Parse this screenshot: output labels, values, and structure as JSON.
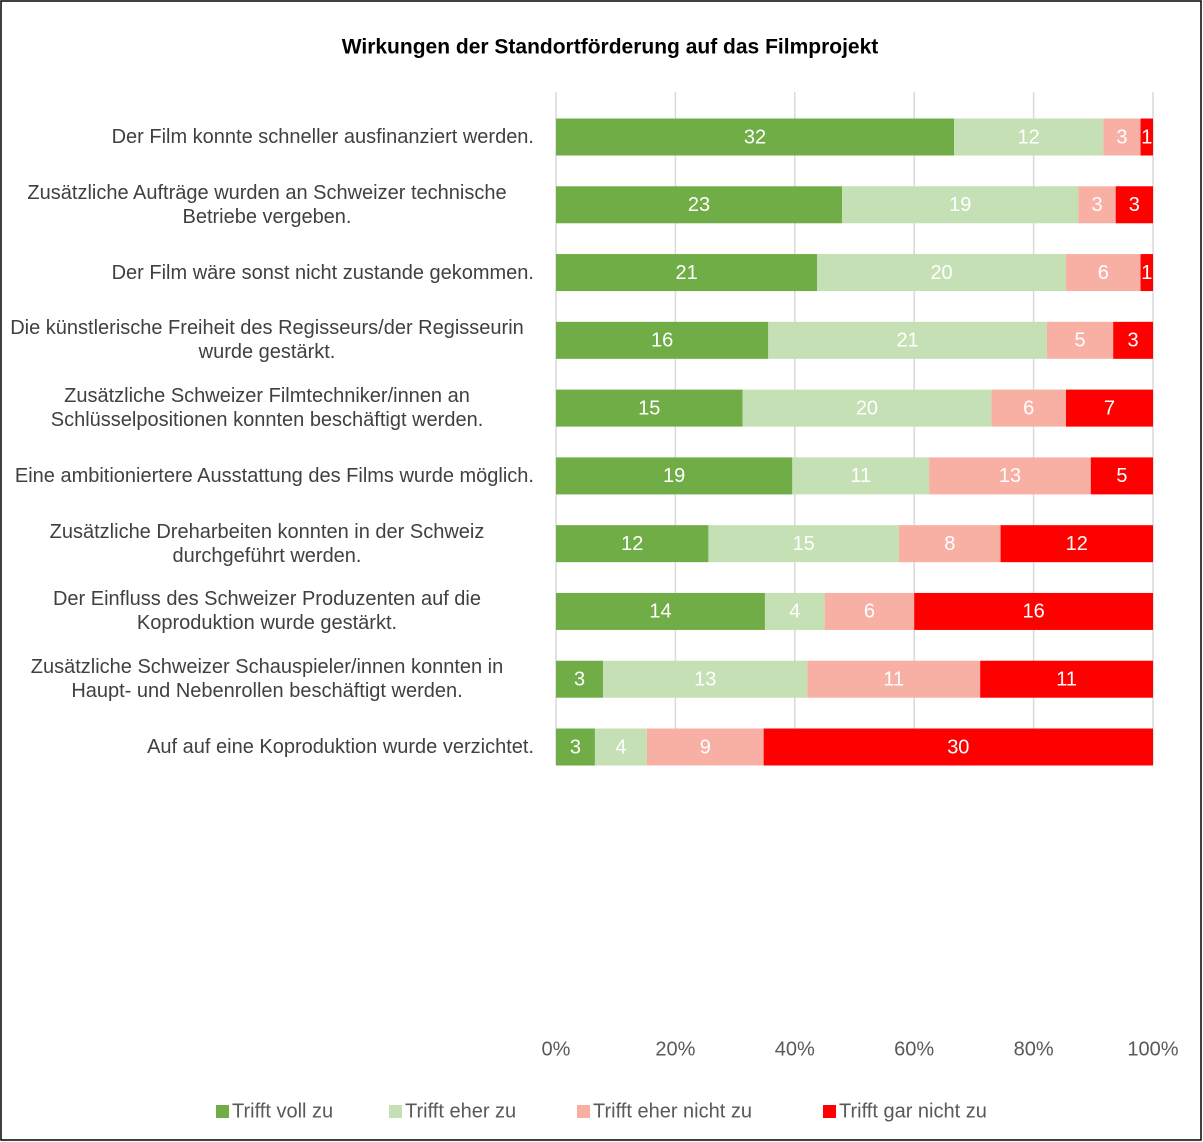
{
  "chart_data": {
    "type": "bar",
    "orientation": "horizontal",
    "stacking": "percent",
    "title": "Wirkungen der Standortförderung auf das Filmprojekt",
    "categories": [
      "Der Film konnte schneller ausfinanziert werden.",
      "Zusätzliche Aufträge wurden an Schweizer technische Betriebe vergeben.",
      "Der Film wäre sonst nicht zustande gekommen.",
      "Die künstlerische Freiheit des Regisseurs/der Regisseurin wurde gestärkt.",
      "Zusätzliche Schweizer Filmtechniker/innen an Schlüsselpositionen konnten beschäftigt werden.",
      "Eine ambitioniertere Ausstattung des Films wurde möglich.",
      "Zusätzliche Dreharbeiten konnten in der Schweiz durchgeführt werden.",
      "Der Einfluss des Schweizer Produzenten auf die Koproduktion wurde gestärkt.",
      "Zusätzliche Schweizer Schauspieler/innen konnten in Haupt- und Nebenrollen beschäftigt werden.",
      "Auf auf eine Koproduktion wurde verzichtet."
    ],
    "series": [
      {
        "name": "Trifft voll zu",
        "color": "#70ad47",
        "values": [
          32,
          23,
          21,
          16,
          15,
          19,
          12,
          14,
          3,
          3
        ]
      },
      {
        "name": "Trifft eher zu",
        "color": "#c5e0b4",
        "values": [
          12,
          19,
          20,
          21,
          20,
          11,
          15,
          4,
          13,
          4
        ]
      },
      {
        "name": "Trifft eher nicht zu",
        "color": "#f8b0a5",
        "values": [
          3,
          3,
          6,
          5,
          6,
          13,
          8,
          6,
          11,
          9
        ]
      },
      {
        "name": "Trifft gar nicht zu",
        "color": "#ff0000",
        "values": [
          1,
          3,
          1,
          3,
          7,
          5,
          12,
          16,
          11,
          30
        ]
      }
    ],
    "xlim": [
      0,
      100
    ],
    "xticks": [
      {
        "value": 0,
        "label": "0%"
      },
      {
        "value": 20,
        "label": "20%"
      },
      {
        "value": 40,
        "label": "40%"
      },
      {
        "value": 60,
        "label": "60%"
      },
      {
        "value": 80,
        "label": "80%"
      },
      {
        "value": 100,
        "label": "100%"
      }
    ],
    "grid": true,
    "legend": "bottom"
  }
}
